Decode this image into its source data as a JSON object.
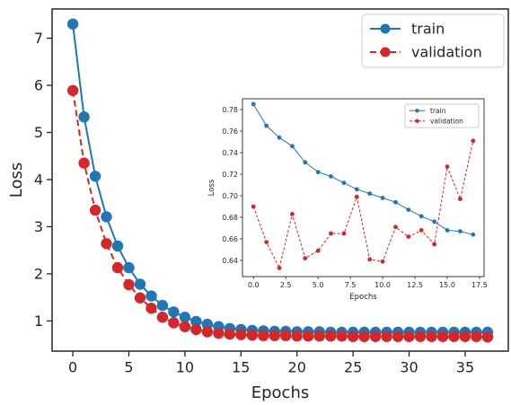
{
  "chart_data": [
    {
      "id": "main",
      "type": "line",
      "xlabel": "Epochs",
      "ylabel": "Loss",
      "xlim": [
        -1.85,
        38.85
      ],
      "ylim": [
        0.36,
        7.62
      ],
      "xticks": [
        0,
        5,
        10,
        15,
        20,
        25,
        30,
        35
      ],
      "yticks": [
        1,
        2,
        3,
        4,
        5,
        6,
        7
      ],
      "xtick_labels": [
        "0",
        "5",
        "10",
        "15",
        "20",
        "25",
        "30",
        "35"
      ],
      "ytick_labels": [
        "1",
        "2",
        "3",
        "4",
        "5",
        "6",
        "7"
      ],
      "grid": false,
      "legend_position": "top-right",
      "x": [
        0,
        1,
        2,
        3,
        4,
        5,
        6,
        7,
        8,
        9,
        10,
        11,
        12,
        13,
        14,
        15,
        16,
        17,
        18,
        19,
        20,
        21,
        22,
        23,
        24,
        25,
        26,
        27,
        28,
        29,
        30,
        31,
        32,
        33,
        34,
        35,
        36,
        37
      ],
      "series": [
        {
          "name": "train",
          "color": "#1f77b4",
          "line_style": "solid",
          "values": [
            7.3,
            5.33,
            4.07,
            3.21,
            2.59,
            2.13,
            1.78,
            1.53,
            1.33,
            1.19,
            1.08,
            0.99,
            0.93,
            0.88,
            0.84,
            0.82,
            0.8,
            0.79,
            0.78,
            0.78,
            0.77,
            0.77,
            0.77,
            0.76,
            0.76,
            0.76,
            0.76,
            0.76,
            0.76,
            0.76,
            0.76,
            0.76,
            0.76,
            0.76,
            0.76,
            0.76,
            0.76,
            0.76
          ]
        },
        {
          "name": "validation",
          "color": "#d62728",
          "line_style": "dashed",
          "values": [
            5.89,
            4.35,
            3.35,
            2.64,
            2.13,
            1.77,
            1.49,
            1.27,
            1.08,
            0.96,
            0.88,
            0.82,
            0.77,
            0.74,
            0.72,
            0.71,
            0.7,
            0.69,
            0.69,
            0.69,
            0.68,
            0.68,
            0.68,
            0.68,
            0.68,
            0.67,
            0.67,
            0.67,
            0.67,
            0.67,
            0.67,
            0.67,
            0.67,
            0.67,
            0.67,
            0.67,
            0.67,
            0.66
          ]
        }
      ]
    },
    {
      "id": "inset",
      "type": "line",
      "xlabel": "Epochs",
      "ylabel": "Loss",
      "xlim": [
        -0.85,
        17.85
      ],
      "ylim": [
        0.625,
        0.79
      ],
      "xticks": [
        0,
        2.5,
        5,
        7.5,
        10,
        12.5,
        15,
        17.5
      ],
      "yticks": [
        0.64,
        0.66,
        0.68,
        0.7,
        0.72,
        0.74,
        0.76,
        0.78
      ],
      "xtick_labels": [
        "0.0",
        "2.5",
        "5.0",
        "7.5",
        "10.0",
        "12.5",
        "15.0",
        "17.5"
      ],
      "ytick_labels": [
        "0.64",
        "0.66",
        "0.68",
        "0.70",
        "0.72",
        "0.74",
        "0.76",
        "0.78"
      ],
      "grid": false,
      "legend_position": "top-right",
      "x": [
        0,
        1,
        2,
        3,
        4,
        5,
        6,
        7,
        8,
        9,
        10,
        11,
        12,
        13,
        14,
        15,
        16,
        17
      ],
      "series": [
        {
          "name": "train",
          "color": "#1f77b4",
          "line_style": "solid",
          "values": [
            0.785,
            0.765,
            0.754,
            0.746,
            0.731,
            0.722,
            0.718,
            0.712,
            0.706,
            0.702,
            0.698,
            0.694,
            0.687,
            0.681,
            0.676,
            0.668,
            0.667,
            0.664
          ]
        },
        {
          "name": "validation",
          "color": "#d62728",
          "line_style": "dashed",
          "values": [
            0.69,
            0.657,
            0.633,
            0.683,
            0.642,
            0.649,
            0.665,
            0.665,
            0.699,
            0.641,
            0.639,
            0.671,
            0.662,
            0.668,
            0.655,
            0.727,
            0.697,
            0.751
          ]
        }
      ]
    }
  ]
}
